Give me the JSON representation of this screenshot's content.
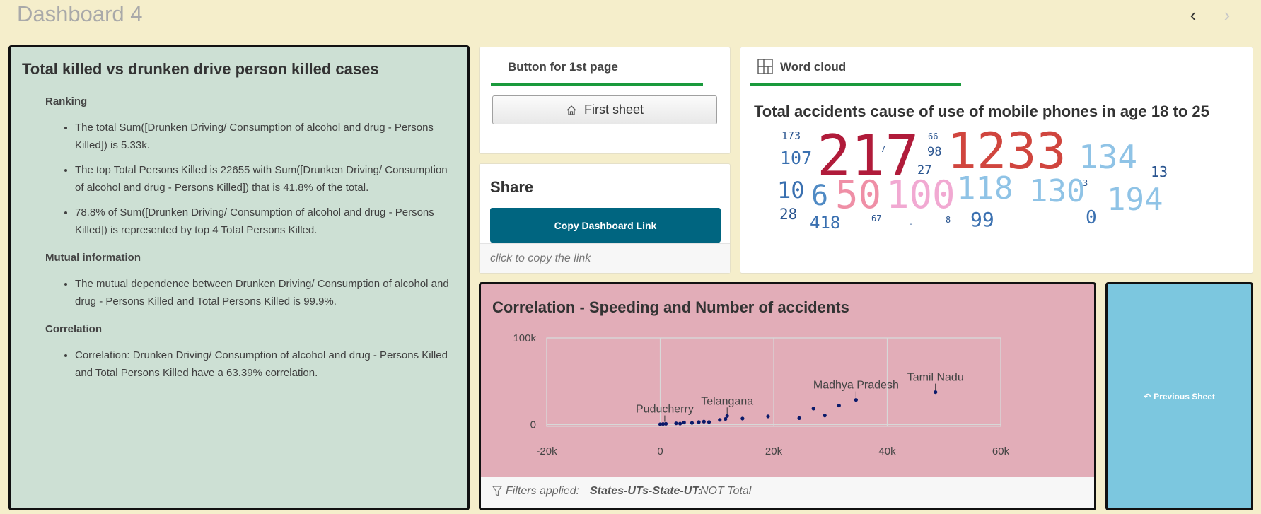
{
  "header": {
    "title": "Dashboard 4",
    "prev_icon": "chevron-left-icon",
    "next_icon": "chevron-right-icon"
  },
  "text_panel": {
    "title": "Total killed vs drunken drive person killed cases",
    "sections": [
      {
        "heading": "Ranking",
        "items": [
          "The total Sum([Drunken Driving/ Consumption of alcohol and drug - Persons Killed]) is 5.33k.",
          "The top Total Persons Killed is 22655 with Sum([Drunken Driving/ Consumption of alcohol and drug - Persons Killed]) that is 41.8% of the total.",
          "78.8% of Sum([Drunken Driving/ Consumption of alcohol and drug - Persons Killed]) is represented by top 4 Total Persons Killed."
        ]
      },
      {
        "heading": "Mutual information",
        "items": [
          "The mutual dependence between Drunken Driving/ Consumption of alcohol and drug - Persons Killed and Total Persons Killed is 99.9%."
        ]
      },
      {
        "heading": "Correlation",
        "items": [
          "Correlation: Drunken Driving/ Consumption of alcohol and drug - Persons Killed and Total Persons Killed have a 63.39% correlation."
        ]
      }
    ]
  },
  "button_panel": {
    "tab_label": "Button for 1st page",
    "button_label": "First sheet",
    "button_icon": "home-icon"
  },
  "share_panel": {
    "title": "Share",
    "button_label": "Copy Dashboard Link",
    "hint": "click to copy the link"
  },
  "wordcloud_panel": {
    "tab_label": "Word cloud",
    "tab_icon": "grid-icon",
    "title": "Total accidents cause of use of mobile phones in age 18 to 25",
    "words": [
      {
        "text": "173",
        "color": "#2a5590"
      },
      {
        "text": "107",
        "color": "#3a70b0"
      },
      {
        "text": "217",
        "color": "#b01b3a"
      },
      {
        "text": "7",
        "color": "#2a5590"
      },
      {
        "text": "66",
        "color": "#2a5590"
      },
      {
        "text": "98",
        "color": "#2a5590"
      },
      {
        "text": "27",
        "color": "#2a5590"
      },
      {
        "text": "1233",
        "color": "#d0453e"
      },
      {
        "text": "134",
        "color": "#8fc3e6"
      },
      {
        "text": "13",
        "color": "#2a5590"
      },
      {
        "text": "10",
        "color": "#3a70b0"
      },
      {
        "text": "6",
        "color": "#4f8ac4"
      },
      {
        "text": "50",
        "color": "#ef8fa6"
      },
      {
        "text": "100",
        "color": "#f1a9d2"
      },
      {
        "text": "118",
        "color": "#8fc3e6"
      },
      {
        "text": "130",
        "color": "#8fc3e6"
      },
      {
        "text": "3",
        "color": "#2a5590"
      },
      {
        "text": "194",
        "color": "#8fc3e6"
      },
      {
        "text": "28",
        "color": "#2a5590"
      },
      {
        "text": "418",
        "color": "#3a70b0"
      },
      {
        "text": "67",
        "color": "#2a5590"
      },
      {
        "text": "-",
        "color": "#2a5590"
      },
      {
        "text": "8",
        "color": "#2a5590"
      },
      {
        "text": "99",
        "color": "#3a70b0"
      },
      {
        "text": "0",
        "color": "#3a70b0"
      }
    ]
  },
  "correlation_panel": {
    "title": "Correlation - Speeding and Number of accidents",
    "filter_label": "Filters applied:",
    "filter_field": "States-UTs-State-UT:",
    "filter_value": "NOT Total",
    "filter_icon": "filter-icon",
    "chart_data": {
      "type": "scatter",
      "x_ticks": [
        "-20k",
        "0",
        "20k",
        "40k",
        "60k"
      ],
      "y_ticks": [
        "100k",
        "0"
      ],
      "xlim": [
        -20000,
        60000
      ],
      "ylim": [
        -2000,
        100000
      ],
      "grid": true,
      "point_color": "#0a1a6a",
      "points": [
        {
          "x": 0,
          "y": 500
        },
        {
          "x": 500,
          "y": 800
        },
        {
          "x": 1000,
          "y": 1000
        },
        {
          "x": 2800,
          "y": 1500
        },
        {
          "x": 3500,
          "y": 1200
        },
        {
          "x": 4200,
          "y": 2500
        },
        {
          "x": 5600,
          "y": 2000
        },
        {
          "x": 6800,
          "y": 3000
        },
        {
          "x": 7700,
          "y": 3500
        },
        {
          "x": 8600,
          "y": 3000
        },
        {
          "x": 10500,
          "y": 5500
        },
        {
          "x": 11500,
          "y": 6500
        },
        {
          "x": 11800,
          "y": 10000
        },
        {
          "x": 14500,
          "y": 7000
        },
        {
          "x": 19000,
          "y": 9500
        },
        {
          "x": 24500,
          "y": 7500
        },
        {
          "x": 27000,
          "y": 18500
        },
        {
          "x": 29000,
          "y": 10500
        },
        {
          "x": 31500,
          "y": 22000
        },
        {
          "x": 34500,
          "y": 28500
        },
        {
          "x": 48500,
          "y": 37500
        }
      ],
      "annotations": [
        {
          "label": "Puducherry",
          "x": 800,
          "y": 800
        },
        {
          "label": "Telangana",
          "x": 11800,
          "y": 10000
        },
        {
          "label": "Madhya Pradesh",
          "x": 34500,
          "y": 28500
        },
        {
          "label": "Tamil Nadu",
          "x": 48500,
          "y": 37500
        }
      ]
    }
  },
  "prev_panel": {
    "button_label": "Previous Sheet",
    "icon": "return-arrow-icon"
  }
}
